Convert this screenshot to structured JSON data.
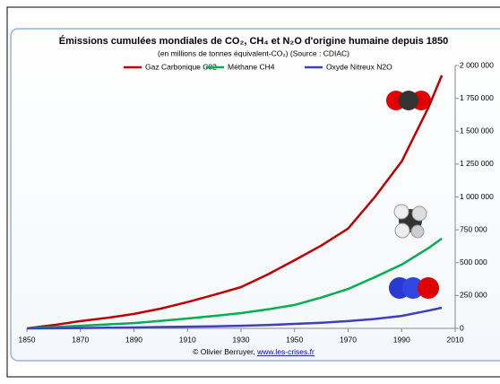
{
  "chart_data": {
    "type": "line",
    "title": "Émissions cumulées mondiales de CO₂, CH₄ et N₂O d'origine humaine depuis 1850",
    "subtitle": "(en millions de tonnes équivalent-CO₂) (Source : CDIAC)",
    "x": [
      1850,
      1860,
      1870,
      1880,
      1890,
      1900,
      1910,
      1920,
      1930,
      1940,
      1950,
      1960,
      1970,
      1980,
      1990,
      2000,
      2005
    ],
    "series": [
      {
        "name": "Gaz Carbonique C02",
        "color": "#c00000",
        "values": [
          0,
          25000,
          55000,
          80000,
          110000,
          150000,
          200000,
          255000,
          314000,
          410000,
          519000,
          630000,
          760000,
          1000000,
          1270000,
          1680000,
          1925000
        ]
      },
      {
        "name": "Méthane CH4",
        "color": "#00b050",
        "values": [
          0,
          10000,
          20000,
          30000,
          40000,
          57000,
          75000,
          95000,
          116000,
          145000,
          178000,
          235000,
          300000,
          390000,
          485000,
          610000,
          683000
        ]
      },
      {
        "name": "Oxyde Nitreux N2O",
        "color": "#3f3fbf",
        "values": [
          0,
          1000,
          3000,
          5000,
          7000,
          10000,
          13000,
          16000,
          20000,
          26000,
          34000,
          43000,
          55000,
          72000,
          95000,
          135000,
          157000
        ]
      }
    ],
    "xlim": [
      1850,
      2010
    ],
    "xticks": [
      1850,
      1870,
      1890,
      1910,
      1930,
      1950,
      1970,
      1990,
      2010
    ],
    "ylim": [
      0,
      2000000
    ],
    "yticks": [
      0,
      {
        "value": 250000,
        "label": "250 000"
      },
      {
        "value": 500000,
        "label": "500 000"
      },
      {
        "value": 750000,
        "label": "750 000"
      },
      {
        "value": 1000000,
        "label": "1 000 000"
      },
      {
        "value": 1250000,
        "label": "1 250 000"
      },
      {
        "value": 1500000,
        "label": "1 500 000"
      },
      {
        "value": 1750000,
        "label": "1 750 000"
      },
      {
        "value": 2000000,
        "label": "2 000 000"
      }
    ],
    "source": {
      "text": "© Olivier Berruyer, ",
      "link": "www.les-crises.fr"
    }
  }
}
